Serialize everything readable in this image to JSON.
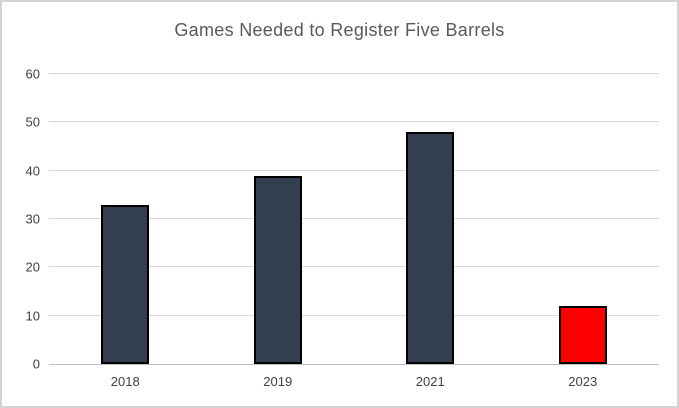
{
  "chart_data": {
    "type": "bar",
    "title": "Games Needed to Register Five Barrels",
    "categories": [
      "2018",
      "2019",
      "2021",
      "2023"
    ],
    "values": [
      33,
      39,
      48,
      12
    ],
    "bar_colors": [
      "#333F50",
      "#333F50",
      "#333F50",
      "#FF0000"
    ],
    "bar_border_color": "#000000",
    "xlabel": "",
    "ylabel": "",
    "ylim": [
      0,
      60
    ],
    "yticks": [
      0,
      10,
      20,
      30,
      40,
      50,
      60
    ],
    "grid": true,
    "legend": "none",
    "colors": {
      "gridline": "#D9D9D9",
      "axis_line": "#BFBFBF",
      "title_text": "#595959",
      "tick_text": "#404040",
      "background": "#FFFFFF",
      "frame_border": "#D3D3D3"
    }
  }
}
